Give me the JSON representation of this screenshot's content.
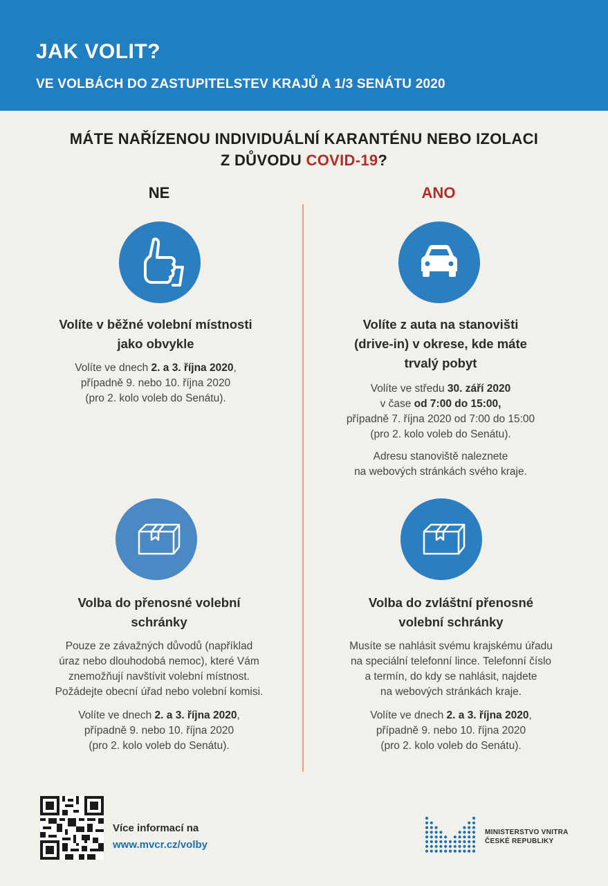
{
  "header": {
    "title": "JAK VOLIT?",
    "subtitle": "VE VOLBÁCH DO ZASTUPITELSTEV KRAJŮ A 1/3 SENÁTU 2020"
  },
  "question": {
    "line1": "MÁTE NAŘÍZENOU INDIVIDUÁLNÍ KARANTÉNU NEBO IZOLACI",
    "line2_prefix": "Z DŮVODU ",
    "line2_highlight": "COVID-19",
    "line2_suffix": "?"
  },
  "colors": {
    "header_blue": "#1f7fc0",
    "accent_red": "#b52b27",
    "divider": "#e6a27c"
  },
  "left": {
    "head": "NE",
    "icon": "thumbs-up-icon",
    "block1": {
      "title1": "Volíte v běžné volební místnosti",
      "title2": "jako obvykle",
      "l1_pre": "Volíte ve dnech ",
      "l1_bold": "2. a 3. října 2020",
      "l1_post": ",",
      "l2": "případně 9. nebo 10. října 2020",
      "l3": "(pro 2. kolo voleb do Senátu)."
    },
    "icon2": "box-icon",
    "block2": {
      "title1": "Volba do přenosné volební",
      "title2": "schránky",
      "p1": "Pouze ze závažných důvodů (například",
      "p2": "úraz nebo dlouhodobá nemoc), které Vám",
      "p3": "znemožňují navštívit volební místnost.",
      "p4": "Požádejte obecní úřad nebo volební komisi.",
      "l1_pre": "Volíte ve dnech ",
      "l1_bold": "2. a 3. října 2020",
      "l1_post": ",",
      "l2": "případně 9. nebo 10. října 2020",
      "l3": "(pro 2. kolo voleb do Senátu)."
    }
  },
  "right": {
    "head": "ANO",
    "icon": "car-icon",
    "block1": {
      "title1": "Volíte z auta na stanovišti",
      "title2": "(drive-in) v okrese, kde máte",
      "title3": "trvalý pobyt",
      "l1_pre": "Volíte ve středu ",
      "l1_bold": "30. září 2020",
      "l2_pre": "v čase ",
      "l2_bold": "od 7:00 do 15:00,",
      "l3": "případně 7. října 2020 od 7:00 do 15:00",
      "l4": "(pro 2. kolo voleb do Senátu).",
      "a1": "Adresu stanoviště naleznete",
      "a2": "na webových stránkách svého kraje."
    },
    "icon2": "box-icon",
    "block2": {
      "title1": "Volba do zvláštní přenosné",
      "title2": "volební schránky",
      "p1": "Musíte se nahlásit svému krajskému úřadu",
      "p2": "na speciální telefonní lince. Telefonní číslo",
      "p3": "a termín, do kdy se nahlásit, najdete",
      "p4": "na webových stránkách kraje.",
      "l1_pre": "Volíte ve dnech ",
      "l1_bold": "2. a 3. října 2020",
      "l1_post": ",",
      "l2": "případně 9. nebo 10. října 2020",
      "l3": "(pro 2. kolo voleb do Senátu)."
    }
  },
  "footer": {
    "more_label": "Více informací na",
    "more_link": "www.mvcr.cz/volby",
    "ministry1": "MINISTERSTVO VNITRA",
    "ministry2": "ČESKÉ REPUBLIKY"
  }
}
